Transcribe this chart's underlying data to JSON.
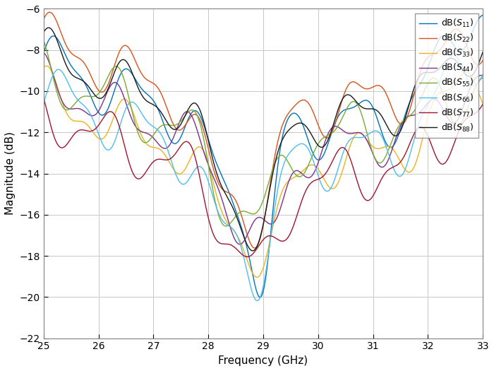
{
  "title": "",
  "xlabel": "Frequency (GHz)",
  "ylabel": "Magnitude (dB)",
  "xlim": [
    25,
    33
  ],
  "ylim": [
    -22,
    -6
  ],
  "yticks": [
    -22,
    -20,
    -18,
    -16,
    -14,
    -12,
    -10,
    -8,
    -6
  ],
  "xticks": [
    25,
    26,
    27,
    28,
    29,
    30,
    31,
    32,
    33
  ],
  "legend_labels": [
    "dB(S_{11})",
    "dB(S_{22})",
    "dB(S_{33})",
    "dB(S_{44})",
    "dB(S_{55})",
    "dB(S_{66})",
    "dB(S_{77})",
    "dB(S_{88})"
  ],
  "colors": [
    "#0072BD",
    "#D95319",
    "#EDB120",
    "#7E2F8E",
    "#77AC30",
    "#4DBEEE",
    "#A2142F",
    "#1a1a1a"
  ],
  "linewidth": 1.0,
  "freq_start": 25.0,
  "freq_end": 33.0,
  "num_points": 500
}
